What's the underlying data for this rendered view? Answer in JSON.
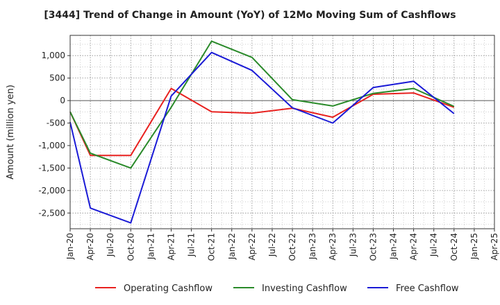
{
  "chart_data": {
    "type": "line",
    "title": "[3444]  Trend of Change in Amount (YoY) of 12Mo Moving Sum of Cashflows",
    "xlabel": "",
    "ylabel": "Amount (million yen)",
    "categories": [
      "Jan-20",
      "Apr-20",
      "Jul-20",
      "Oct-20",
      "Jan-21",
      "Apr-21",
      "Jul-21",
      "Oct-21",
      "Jan-22",
      "Apr-22",
      "Jul-22",
      "Oct-22",
      "Jan-23",
      "Apr-23",
      "Jul-23",
      "Oct-23",
      "Jan-24",
      "Apr-24",
      "Jul-24",
      "Oct-24",
      "Jan-25",
      "Apr-25"
    ],
    "ylim": [
      -2850,
      1450
    ],
    "yticks": [
      1000,
      500,
      0,
      -500,
      -1000,
      -1500,
      -2000,
      -2500
    ],
    "ytick_labels": [
      "1,000",
      "500",
      "0",
      "-500",
      "-1,000",
      "-1,500",
      "-2,000",
      "-2,500"
    ],
    "grid": true,
    "legend_position": "bottom",
    "series": [
      {
        "name": "Operating Cashflow",
        "color": "#e8211f",
        "points": [
          [
            "Jan-20",
            -250
          ],
          [
            "Apr-20",
            -1220
          ],
          [
            "Oct-20",
            -1220
          ],
          [
            "Apr-21",
            270
          ],
          [
            "Oct-21",
            -250
          ],
          [
            "Apr-22",
            -280
          ],
          [
            "Oct-22",
            -170
          ],
          [
            "Apr-23",
            -370
          ],
          [
            "Oct-23",
            140
          ],
          [
            "Apr-24",
            170
          ],
          [
            "Oct-24",
            -150
          ]
        ]
      },
      {
        "name": "Investing Cashflow",
        "color": "#2a8a2a",
        "points": [
          [
            "Jan-20",
            -250
          ],
          [
            "Apr-20",
            -1170
          ],
          [
            "Oct-20",
            -1500
          ],
          [
            "Apr-21",
            -150
          ],
          [
            "Oct-21",
            1320
          ],
          [
            "Apr-22",
            960
          ],
          [
            "Oct-22",
            20
          ],
          [
            "Apr-23",
            -120
          ],
          [
            "Oct-23",
            160
          ],
          [
            "Apr-24",
            270
          ],
          [
            "Oct-24",
            -130
          ]
        ]
      },
      {
        "name": "Free Cashflow",
        "color": "#1a1ad6",
        "points": [
          [
            "Jan-20",
            -480
          ],
          [
            "Apr-20",
            -2390
          ],
          [
            "Oct-20",
            -2720
          ],
          [
            "Apr-21",
            100
          ],
          [
            "Oct-21",
            1070
          ],
          [
            "Apr-22",
            670
          ],
          [
            "Oct-22",
            -160
          ],
          [
            "Apr-23",
            -500
          ],
          [
            "Oct-23",
            290
          ],
          [
            "Apr-24",
            430
          ],
          [
            "Oct-24",
            -290
          ]
        ]
      }
    ]
  }
}
